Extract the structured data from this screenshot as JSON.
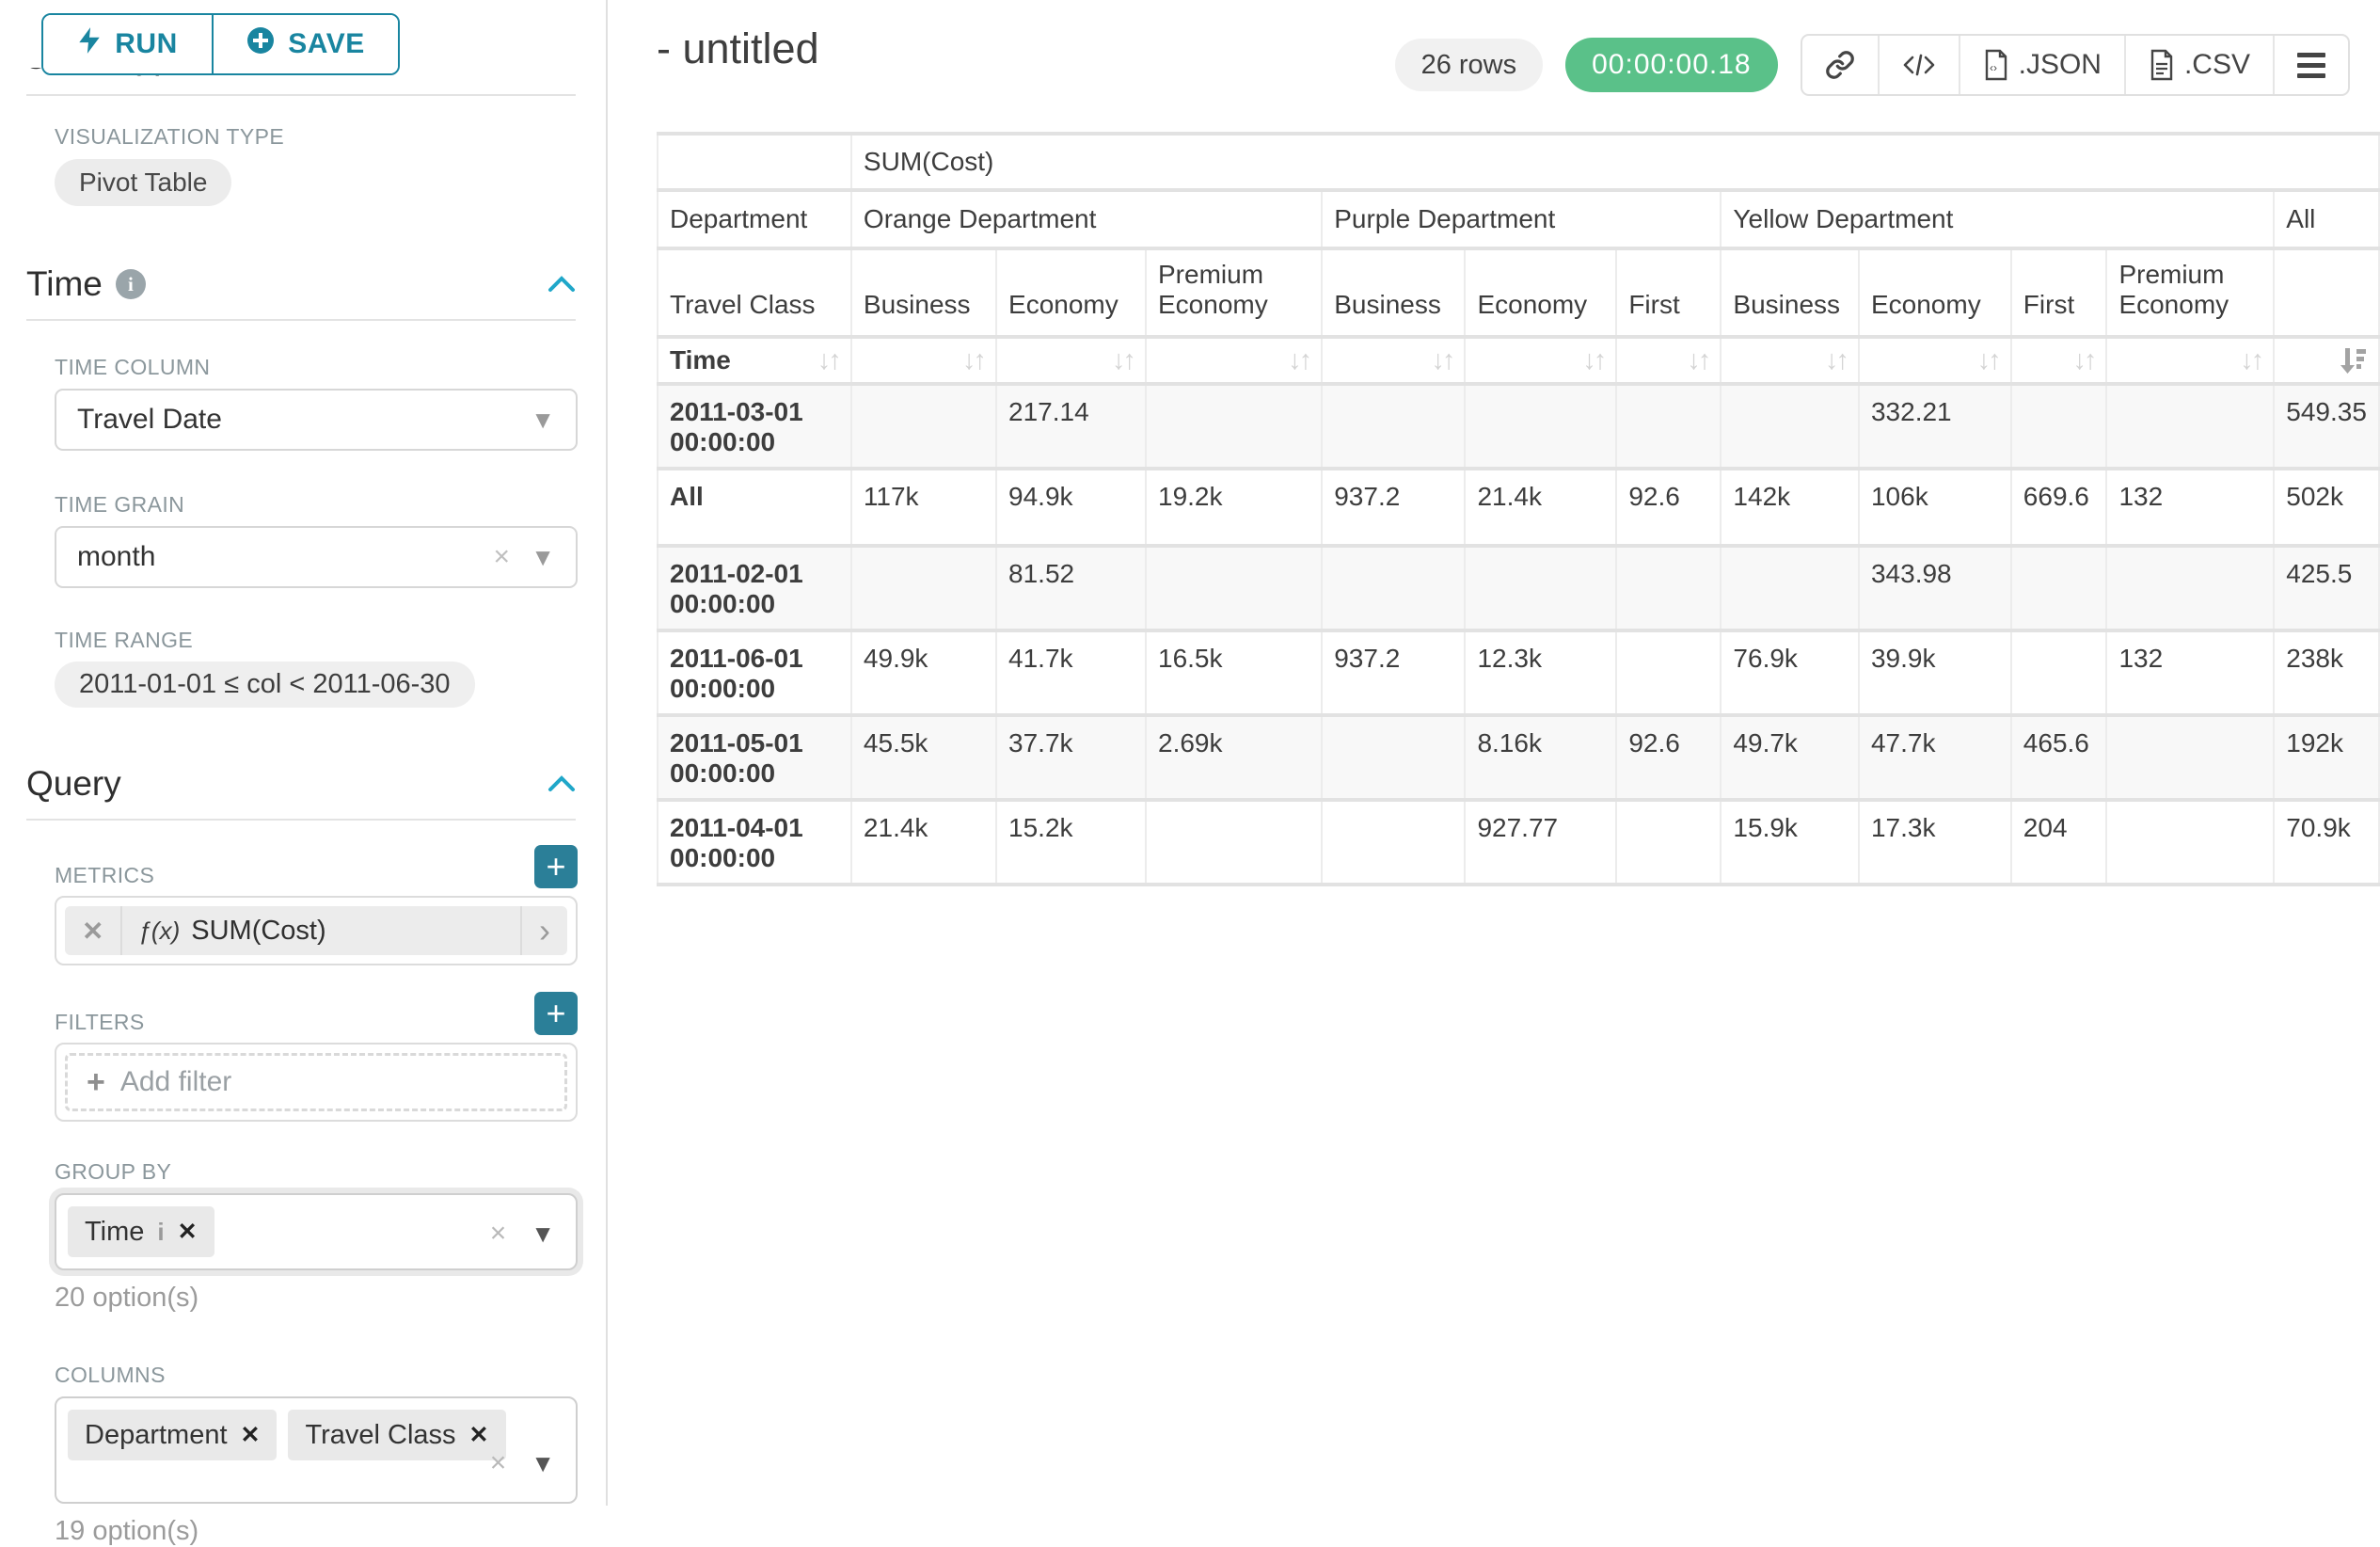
{
  "colors": {
    "accent_teal": "#1985a0",
    "plus_button_teal": "#2b7f98",
    "timer_green": "#5ac189",
    "collapse_chevron_blue": "#20a7c9"
  },
  "toolbar": {
    "run": "RUN",
    "save": "SAVE"
  },
  "sidebar": {
    "clipped_section_title": "Chart Type",
    "viz": {
      "label": "VISUALIZATION TYPE",
      "value": "Pivot Table"
    },
    "time": {
      "title": "Time",
      "column_label": "TIME COLUMN",
      "column_value": "Travel Date",
      "grain_label": "TIME GRAIN",
      "grain_value": "month",
      "range_label": "TIME RANGE",
      "range_value": "2011-01-01 ≤ col < 2011-06-30"
    },
    "query": {
      "title": "Query",
      "metrics_label": "METRICS",
      "metric_fx": "ƒ(x)",
      "metric_name": "SUM(Cost)",
      "filters_label": "FILTERS",
      "add_filter": "Add filter",
      "group_by_label": "GROUP BY",
      "group_by_tags": [
        {
          "label": "Time",
          "has_info": true
        }
      ],
      "group_by_hint": "20 option(s)",
      "columns_label": "COLUMNS",
      "columns_tags": [
        {
          "label": "Department",
          "has_info": false
        },
        {
          "label": "Travel Class",
          "has_info": false
        }
      ],
      "columns_hint": "19 option(s)"
    }
  },
  "header": {
    "title": "- untitled",
    "rows_badge": "26 rows",
    "timer": "00:00:00.18",
    "export_json": ".JSON",
    "export_csv": ".CSV"
  },
  "chart_data": {
    "type": "table",
    "metric_header": "SUM(Cost)",
    "row_dim_label": "Department",
    "col_dim_label": "Travel Class",
    "time_label": "Time",
    "column_groups": [
      {
        "label": "Orange Department",
        "columns": [
          "Business",
          "Economy",
          "Premium Economy"
        ]
      },
      {
        "label": "Purple Department",
        "columns": [
          "Business",
          "Economy",
          "First"
        ]
      },
      {
        "label": "Yellow Department",
        "columns": [
          "Business",
          "Economy",
          "First",
          "Premium Economy"
        ]
      },
      {
        "label": "All",
        "columns": [
          ""
        ]
      }
    ],
    "sort": {
      "active_column": "All",
      "direction": "desc"
    },
    "rows": [
      {
        "label": "2011-03-01 00:00:00",
        "values": [
          "",
          "217.14",
          "",
          "",
          "",
          "",
          "",
          "332.21",
          "",
          "",
          "549.35"
        ]
      },
      {
        "label": "All",
        "values": [
          "117k",
          "94.9k",
          "19.2k",
          "937.2",
          "21.4k",
          "92.6",
          "142k",
          "106k",
          "669.6",
          "132",
          "502k"
        ]
      },
      {
        "label": "2011-02-01 00:00:00",
        "values": [
          "",
          "81.52",
          "",
          "",
          "",
          "",
          "",
          "343.98",
          "",
          "",
          "425.5"
        ]
      },
      {
        "label": "2011-06-01 00:00:00",
        "values": [
          "49.9k",
          "41.7k",
          "16.5k",
          "937.2",
          "12.3k",
          "",
          "76.9k",
          "39.9k",
          "",
          "132",
          "238k"
        ]
      },
      {
        "label": "2011-05-01 00:00:00",
        "values": [
          "45.5k",
          "37.7k",
          "2.69k",
          "",
          "8.16k",
          "92.6",
          "49.7k",
          "47.7k",
          "465.6",
          "",
          "192k"
        ]
      },
      {
        "label": "2011-04-01 00:00:00",
        "values": [
          "21.4k",
          "15.2k",
          "",
          "",
          "927.77",
          "",
          "15.9k",
          "17.3k",
          "204",
          "",
          "70.9k"
        ]
      }
    ]
  }
}
